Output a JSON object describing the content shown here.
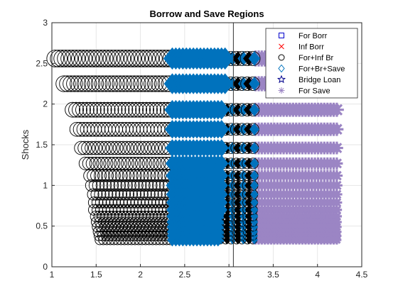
{
  "chart_data": {
    "type": "scatter",
    "title": "Borrow and Save Regions",
    "xlabel": "",
    "ylabel": "Shocks",
    "xlim": [
      1,
      4.5
    ],
    "ylim": [
      0,
      3
    ],
    "xticks": [
      "1",
      "1.5",
      "2",
      "2.5",
      "3",
      "3.5",
      "4",
      "4.5"
    ],
    "yticks": [
      "0",
      "0.5",
      "1",
      "1.5",
      "2",
      "2.5",
      "3"
    ],
    "grid": true,
    "legend_position": "top-right",
    "vertical_line_x": 3.05,
    "shock_levels": [
      0.33,
      0.38,
      0.43,
      0.49,
      0.55,
      0.62,
      0.7,
      0.79,
      0.89,
      1.0,
      1.12,
      1.27,
      1.46,
      1.69,
      1.93,
      2.25,
      2.56
    ],
    "series": [
      {
        "name": "For Borr",
        "marker": "square",
        "color": "#0000cc",
        "rows": []
      },
      {
        "name": "Inf Borr",
        "marker": "x",
        "color": "#ff0000",
        "rows": []
      },
      {
        "name": "For+Inf Br",
        "marker": "circle",
        "color": "#000000",
        "rows": [
          {
            "y": 2.56,
            "x_start": 1.0,
            "x_end": 2.36
          },
          {
            "y": 2.25,
            "x_start": 1.1,
            "x_end": 2.36
          },
          {
            "y": 1.93,
            "x_start": 1.2,
            "x_end": 2.36
          },
          {
            "y": 1.69,
            "x_start": 1.25,
            "x_end": 2.36
          },
          {
            "y": 1.46,
            "x_start": 1.3,
            "x_end": 2.36
          },
          {
            "y": 1.27,
            "x_start": 1.35,
            "x_end": 2.36
          },
          {
            "y": 1.12,
            "x_start": 1.4,
            "x_end": 2.36
          },
          {
            "y": 1.0,
            "x_start": 1.42,
            "x_end": 2.36
          },
          {
            "y": 0.89,
            "x_start": 1.44,
            "x_end": 2.36
          },
          {
            "y": 0.79,
            "x_start": 1.45,
            "x_end": 2.36
          },
          {
            "y": 0.7,
            "x_start": 1.45,
            "x_end": 2.36
          },
          {
            "y": 0.62,
            "x_start": 1.47,
            "x_end": 2.36
          },
          {
            "y": 0.55,
            "x_start": 1.48,
            "x_end": 2.36
          },
          {
            "y": 0.49,
            "x_start": 1.49,
            "x_end": 2.36
          },
          {
            "y": 0.43,
            "x_start": 1.5,
            "x_end": 2.36
          },
          {
            "y": 0.38,
            "x_start": 1.51,
            "x_end": 2.36
          },
          {
            "y": 0.33,
            "x_start": 1.52,
            "x_end": 2.36
          }
        ]
      },
      {
        "name": "For+Br+Save",
        "marker": "diamond",
        "color": "#0072bd",
        "rows": [
          {
            "y": 2.56,
            "x_start": 2.36,
            "x_end": 2.98
          },
          {
            "y": 2.25,
            "x_start": 2.36,
            "x_end": 2.96
          },
          {
            "y": 1.93,
            "x_start": 2.36,
            "x_end": 2.95
          },
          {
            "y": 1.69,
            "x_start": 2.36,
            "x_end": 2.95
          },
          {
            "y": 1.46,
            "x_start": 2.36,
            "x_end": 2.95
          },
          {
            "y": 1.27,
            "x_start": 2.36,
            "x_end": 2.93
          },
          {
            "y": 1.12,
            "x_start": 2.36,
            "x_end": 2.93
          },
          {
            "y": 1.0,
            "x_start": 2.36,
            "x_end": 2.92
          },
          {
            "y": 0.89,
            "x_start": 2.36,
            "x_end": 2.92
          },
          {
            "y": 0.79,
            "x_start": 2.36,
            "x_end": 2.92
          },
          {
            "y": 0.7,
            "x_start": 2.36,
            "x_end": 2.92
          },
          {
            "y": 0.62,
            "x_start": 2.36,
            "x_end": 2.9
          },
          {
            "y": 0.55,
            "x_start": 2.36,
            "x_end": 2.9
          },
          {
            "y": 0.49,
            "x_start": 2.36,
            "x_end": 2.9
          },
          {
            "y": 0.43,
            "x_start": 2.36,
            "x_end": 2.9
          },
          {
            "y": 0.38,
            "x_start": 2.36,
            "x_end": 2.9
          },
          {
            "y": 0.33,
            "x_start": 2.36,
            "x_end": 2.9
          }
        ]
      },
      {
        "name": "Bridge Loan",
        "marker": "star",
        "color": "#00008b",
        "rows": []
      },
      {
        "name": "For Save",
        "marker": "asterisk",
        "color": "#9b85c4",
        "rows": [
          {
            "y": 2.56,
            "x_start": 3.3,
            "x_end": 3.95
          },
          {
            "y": 2.25,
            "x_start": 3.3,
            "x_end": 3.95
          },
          {
            "y": 1.93,
            "x_start": 3.3,
            "x_end": 4.28
          },
          {
            "y": 1.69,
            "x_start": 3.3,
            "x_end": 4.28
          },
          {
            "y": 1.46,
            "x_start": 3.3,
            "x_end": 4.28
          },
          {
            "y": 1.27,
            "x_start": 3.3,
            "x_end": 4.28
          },
          {
            "y": 1.12,
            "x_start": 3.3,
            "x_end": 4.28
          },
          {
            "y": 1.0,
            "x_start": 3.3,
            "x_end": 4.28
          },
          {
            "y": 0.89,
            "x_start": 3.3,
            "x_end": 4.28
          },
          {
            "y": 0.79,
            "x_start": 3.3,
            "x_end": 4.28
          },
          {
            "y": 0.7,
            "x_start": 3.3,
            "x_end": 4.28
          },
          {
            "y": 0.62,
            "x_start": 3.3,
            "x_end": 4.28
          },
          {
            "y": 0.55,
            "x_start": 3.3,
            "x_end": 4.28
          },
          {
            "y": 0.49,
            "x_start": 3.3,
            "x_end": 4.28
          },
          {
            "y": 0.43,
            "x_start": 3.3,
            "x_end": 4.28
          },
          {
            "y": 0.38,
            "x_start": 3.3,
            "x_end": 4.28
          },
          {
            "y": 0.33,
            "x_start": 3.3,
            "x_end": 4.28
          }
        ]
      }
    ],
    "transition_zone": {
      "x_start": 2.9,
      "x_end": 3.3,
      "marker_mix": [
        "diamond",
        "circle"
      ]
    }
  }
}
